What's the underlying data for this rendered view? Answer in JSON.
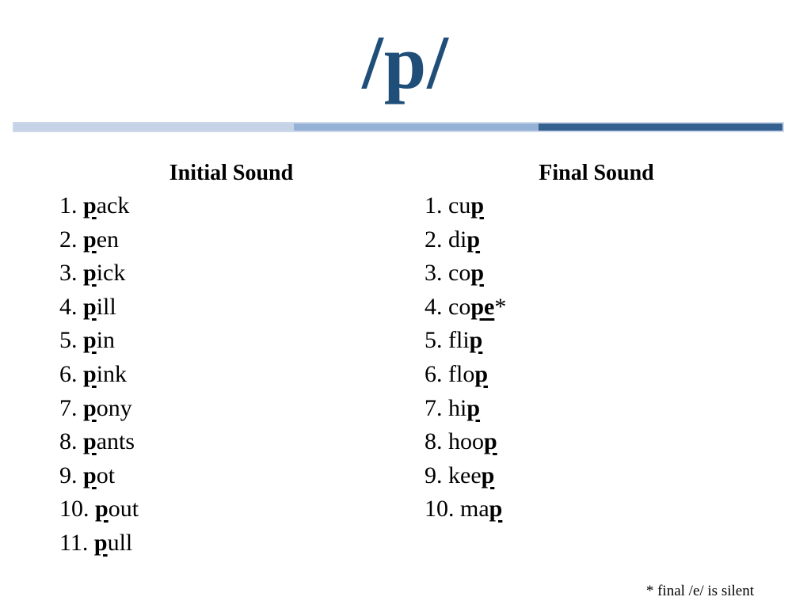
{
  "title": "/p/",
  "title_color": "#1f4e79",
  "divider": {
    "segments": [
      {
        "name": "light-blue",
        "color": "#c6d3e7"
      },
      {
        "name": "medium-blue",
        "color": "#95b2d6"
      },
      {
        "name": "dark-blue",
        "color": "#34618f"
      }
    ]
  },
  "columns": [
    {
      "heading": "Initial Sound",
      "items": [
        {
          "num": "1.",
          "pre": "",
          "target": "p",
          "post": "ack",
          "suffix": ""
        },
        {
          "num": "2.",
          "pre": "",
          "target": "p",
          "post": "en",
          "suffix": ""
        },
        {
          "num": "3.",
          "pre": "",
          "target": "p",
          "post": "ick",
          "suffix": ""
        },
        {
          "num": "4.",
          "pre": "",
          "target": "p",
          "post": "ill",
          "suffix": ""
        },
        {
          "num": "5.",
          "pre": "",
          "target": "p",
          "post": "in",
          "suffix": ""
        },
        {
          "num": "6.",
          "pre": "",
          "target": "p",
          "post": "ink",
          "suffix": ""
        },
        {
          "num": "7.",
          "pre": "",
          "target": "p",
          "post": "ony",
          "suffix": ""
        },
        {
          "num": "8.",
          "pre": "",
          "target": "p",
          "post": "ants",
          "suffix": ""
        },
        {
          "num": "9.",
          "pre": "",
          "target": "p",
          "post": "ot",
          "suffix": ""
        },
        {
          "num": "10.",
          "pre": "",
          "target": "p",
          "post": "out",
          "suffix": ""
        },
        {
          "num": "11.",
          "pre": "",
          "target": "p",
          "post": "ull",
          "suffix": ""
        }
      ]
    },
    {
      "heading": "Final Sound",
      "items": [
        {
          "num": "1.",
          "pre": "cu",
          "target": "p",
          "post": "",
          "suffix": ""
        },
        {
          "num": "2.",
          "pre": "di",
          "target": "p",
          "post": "",
          "suffix": ""
        },
        {
          "num": "3.",
          "pre": "co",
          "target": "p",
          "post": "",
          "suffix": ""
        },
        {
          "num": "4.",
          "pre": "co",
          "target": "pe",
          "post": "",
          "suffix": "*"
        },
        {
          "num": "5.",
          "pre": "fli",
          "target": "p",
          "post": "",
          "suffix": ""
        },
        {
          "num": "6.",
          "pre": "flo",
          "target": "p",
          "post": "",
          "suffix": ""
        },
        {
          "num": "7.",
          "pre": "hi",
          "target": "p",
          "post": "",
          "suffix": ""
        },
        {
          "num": "8.",
          "pre": "hoo",
          "target": "p",
          "post": "",
          "suffix": ""
        },
        {
          "num": "9.",
          "pre": "kee",
          "target": "p",
          "post": "",
          "suffix": ""
        },
        {
          "num": "10.",
          "pre": "ma",
          "target": "p",
          "post": "",
          "suffix": ""
        }
      ]
    }
  ],
  "footnote": "* final /e/ is silent"
}
